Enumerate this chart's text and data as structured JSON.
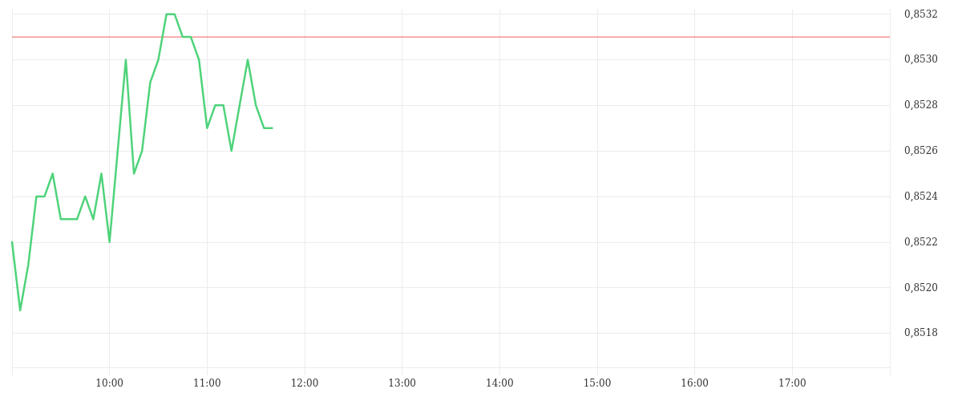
{
  "chart_data": {
    "type": "line",
    "x": [
      9,
      9.0833,
      9.1667,
      9.25,
      9.3333,
      9.4167,
      9.5,
      9.5833,
      9.6667,
      9.75,
      9.8333,
      9.9167,
      10,
      10.0833,
      10.1667,
      10.25,
      10.3333,
      10.4167,
      10.5,
      10.5833,
      10.6667,
      10.75,
      10.8333,
      10.9167,
      11,
      11.0833,
      11.1667,
      11.25,
      11.3333,
      11.4167,
      11.5,
      11.5833,
      11.6667
    ],
    "series": [
      {
        "color": "#4fd37b",
        "values": [
          0.8522,
          0.8519,
          0.8521,
          0.8524,
          0.8524,
          0.8525,
          0.8523,
          0.8523,
          0.8523,
          0.8524,
          0.8523,
          0.8525,
          0.8522,
          0.8526,
          0.853,
          0.8525,
          0.8526,
          0.8529,
          0.853,
          0.8532,
          0.8532,
          0.8531,
          0.8531,
          0.853,
          0.8527,
          0.8528,
          0.8528,
          0.8526,
          0.8528,
          0.853,
          0.8528,
          0.8527,
          0.8527
        ]
      }
    ],
    "xlim": [
      9,
      18
    ],
    "xticks": [
      {
        "value": 9,
        "label": null
      },
      {
        "value": 10,
        "label": "10:00"
      },
      {
        "value": 11,
        "label": "11:00"
      },
      {
        "value": 12,
        "label": "12:00"
      },
      {
        "value": 13,
        "label": "13:00"
      },
      {
        "value": 14,
        "label": "14:00"
      },
      {
        "value": 15,
        "label": "15:00"
      },
      {
        "value": 16,
        "label": "16:00"
      },
      {
        "value": 17,
        "label": "17:00"
      },
      {
        "value": 18,
        "label": null
      }
    ],
    "ylim": [
      0.85165,
      0.85322
    ],
    "yticks": [
      {
        "value": 0.8518,
        "label": "0,8518"
      },
      {
        "value": 0.852,
        "label": "0,8520"
      },
      {
        "value": 0.8522,
        "label": "0,8522"
      },
      {
        "value": 0.8524,
        "label": "0,8524"
      },
      {
        "value": 0.8526,
        "label": "0,8526"
      },
      {
        "value": 0.8528,
        "label": "0,8528"
      },
      {
        "value": 0.853,
        "label": "0,8530"
      },
      {
        "value": 0.8532,
        "label": "0,8532"
      }
    ],
    "grid": true,
    "marker": "none",
    "line_style": "solid",
    "ref_lines": [
      {
        "axis": "y",
        "value": 0.8531,
        "color": "#f25c5c"
      }
    ]
  }
}
